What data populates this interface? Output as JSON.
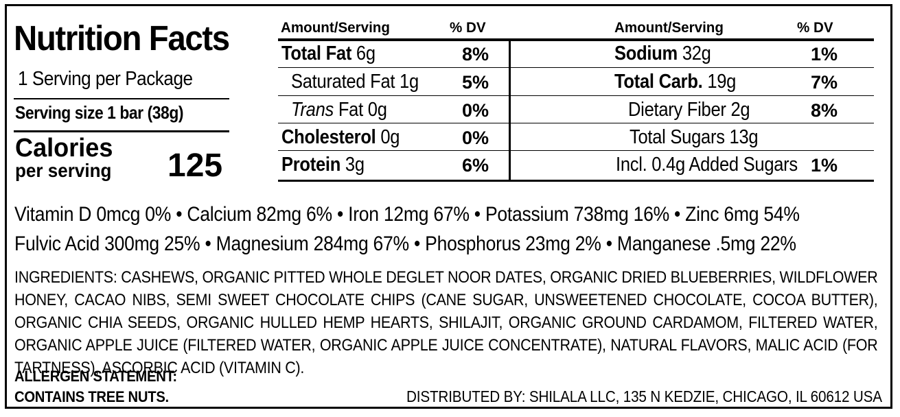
{
  "header": {
    "title": "Nutrition Facts",
    "servings_per_package": "1 Serving per Package",
    "serving_size": "Serving size 1 bar (38g)",
    "calories_label": "Calories",
    "calories_sub": "per serving",
    "calories_value": "125"
  },
  "table": {
    "left": {
      "col_amount": "Amount/Serving",
      "col_dv": "% DV",
      "rows": [
        {
          "name": "Total Fat",
          "amount": "6g",
          "dv": "8%"
        },
        {
          "name": "Saturated Fat",
          "amount": "1g",
          "dv": "5%"
        },
        {
          "name": "Trans",
          "name_rest": "Fat",
          "amount": "0g",
          "dv": "0%"
        },
        {
          "name": "Cholesterol",
          "amount": "0g",
          "dv": "0%"
        },
        {
          "name": "Protein",
          "amount": "3g",
          "dv": "6%"
        }
      ]
    },
    "right": {
      "col_amount": "Amount/Serving",
      "col_dv": "% DV",
      "rows": [
        {
          "name": "Sodium",
          "amount": "32g",
          "dv": "1%"
        },
        {
          "name": "Total Carb.",
          "amount": "19g",
          "dv": "7%"
        },
        {
          "name": "Dietary Fiber",
          "amount": "2g",
          "dv": "8%"
        },
        {
          "name": "Total Sugars",
          "amount": "13g",
          "dv": ""
        },
        {
          "name": "Incl. 0.4g Added Sugars",
          "amount": "",
          "dv": "1%"
        }
      ]
    }
  },
  "vitamins": {
    "line1": "Vitamin D 0mcg 0% • Calcium 82mg 6% • Iron 12mg 67% • Potassium 738mg 16% • Zinc 6mg 54%",
    "line2": "Fulvic Acid 300mg 25% • Magnesium 284mg 67% • Phosphorus 23mg 2% • Manganese .5mg 22%"
  },
  "ingredients": "INGREDIENTS: CASHEWS, ORGANIC PITTED WHOLE DEGLET NOOR DATES, ORGANIC DRIED BLUEBERRIES, WILDFLOWER HONEY, CACAO NIBS, SEMI SWEET CHOCOLATE CHIPS (CANE SUGAR, UNSWEETENED CHOCOLATE, COCOA BUTTER), ORGANIC CHIA SEEDS, ORGANIC HULLED HEMP HEARTS, SHILAJIT, ORGANIC GROUND CARDAMOM, FILTERED WATER, ORGANIC APPLE JUICE (FILTERED WATER, ORGANIC APPLE JUICE CONCENTRATE), NATURAL FLAVORS, MALIC ACID (FOR TARTNESS), ASCORBIC ACID (VITAMIN C).",
  "allergen": {
    "heading": "ALLERGEN STATEMENT:",
    "text": "CONTAINS TREE NUTS."
  },
  "distributed_by": "DISTRIBUTED BY: SHILALA LLC, 135 N KEDZIE, CHICAGO, IL 60612 USA"
}
